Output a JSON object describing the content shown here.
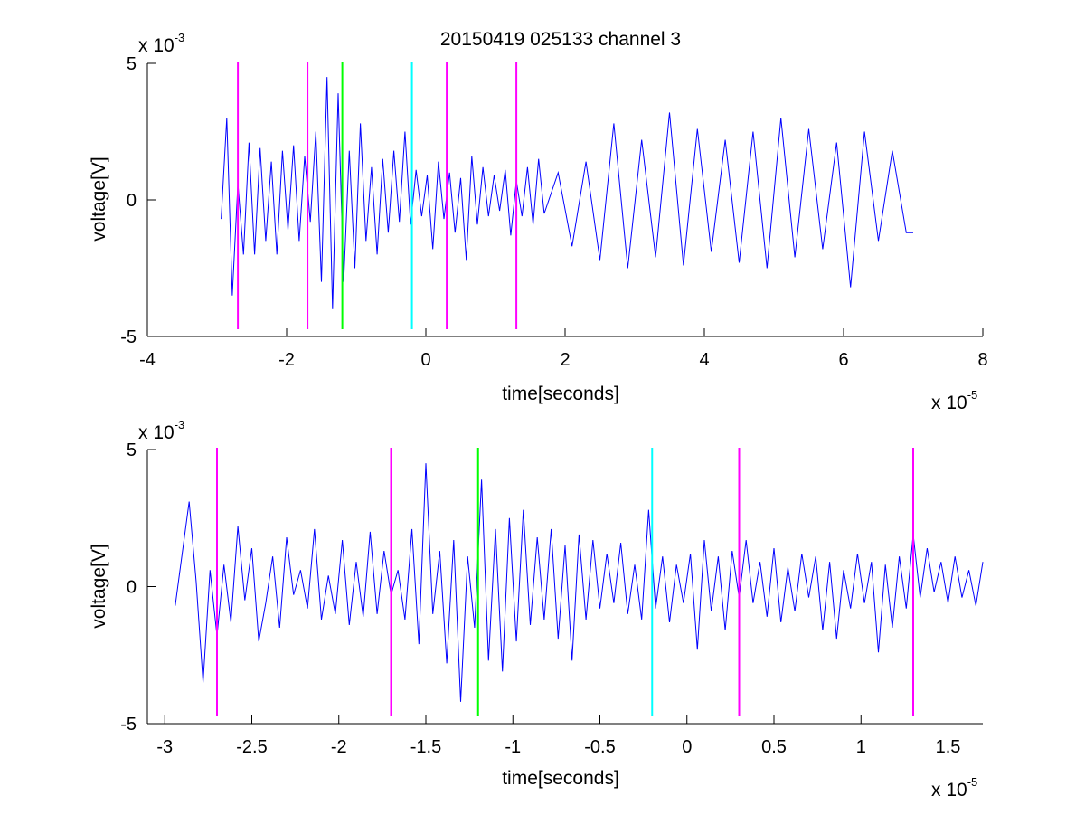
{
  "chart_data": [
    {
      "type": "line",
      "title": "20150419 025133 channel 3",
      "xlabel": "time[seconds]",
      "ylabel": "voltage[V]",
      "xlim": [
        -4e-05,
        8e-05
      ],
      "ylim": [
        -0.005,
        0.005
      ],
      "x_ticks": [
        -4e-05,
        -2e-05,
        0,
        2e-05,
        4e-05,
        6e-05,
        8e-05
      ],
      "x_tick_labels": [
        "-4",
        "-2",
        "0",
        "2",
        "4",
        "6",
        "8"
      ],
      "y_ticks": [
        -0.005,
        0,
        0.005
      ],
      "y_tick_labels": [
        "-5",
        "0",
        "5"
      ],
      "x_multiplier": {
        "base": "x 10",
        "exponent": "-5"
      },
      "y_multiplier": {
        "base": "x 10",
        "exponent": "-3"
      },
      "grid": false,
      "series": [
        {
          "color": "#0000ff",
          "x": [
            -2.94e-05,
            -2.86e-05,
            -2.78e-05,
            -2.7e-05,
            -2.62e-05,
            -2.54e-05,
            -2.46e-05,
            -2.38e-05,
            -2.3e-05,
            -2.22e-05,
            -2.14e-05,
            -2.06e-05,
            -1.98e-05,
            -1.9e-05,
            -1.82e-05,
            -1.74e-05,
            -1.66e-05,
            -1.58e-05,
            -1.5e-05,
            -1.42e-05,
            -1.34e-05,
            -1.26e-05,
            -1.18e-05,
            -1.1e-05,
            -1.02e-05,
            -9.4e-06,
            -8.6e-06,
            -7.8e-06,
            -7e-06,
            -6.2e-06,
            -5.4e-06,
            -4.6e-06,
            -3.8e-06,
            -3e-06,
            -2.2e-06,
            -1.4e-06,
            -6e-07,
            2e-07,
            1e-06,
            1.8e-06,
            2.6e-06,
            3.4e-06,
            4.2e-06,
            5e-06,
            5.8e-06,
            6.6e-06,
            7.4e-06,
            8.2e-06,
            9e-06,
            9.8e-06,
            1.06e-05,
            1.14e-05,
            1.22e-05,
            1.3e-05,
            1.38e-05,
            1.46e-05,
            1.54e-05,
            1.62e-05,
            1.7e-05,
            1.9e-05,
            2.1e-05,
            2.3e-05,
            2.5e-05,
            2.7e-05,
            2.9e-05,
            3.1e-05,
            3.3e-05,
            3.5e-05,
            3.7e-05,
            3.9e-05,
            4.1e-05,
            4.3e-05,
            4.5e-05,
            4.7e-05,
            4.9e-05,
            5.1e-05,
            5.3e-05,
            5.5e-05,
            5.7e-05,
            5.9e-05,
            6.1e-05,
            6.3e-05,
            6.5e-05,
            6.7e-05,
            6.9e-05,
            7e-05
          ],
          "y": [
            -0.0007,
            0.003,
            -0.0035,
            0.0006,
            -0.002,
            0.0021,
            -0.002,
            0.0019,
            -0.0015,
            0.0014,
            -0.002,
            0.0018,
            -0.0011,
            0.002,
            -0.0015,
            0.0016,
            -0.0008,
            0.0025,
            -0.003,
            0.0045,
            -0.004,
            0.0039,
            -0.003,
            0.0018,
            -0.0025,
            0.0028,
            -0.0015,
            0.0012,
            -0.002,
            0.0015,
            -0.0012,
            0.0018,
            -0.0008,
            0.0025,
            -0.0009,
            0.0011,
            -0.0006,
            0.0009,
            -0.0018,
            0.0014,
            -0.0007,
            0.001,
            -0.0012,
            0.0008,
            -0.0022,
            0.0016,
            -0.0009,
            0.0012,
            -0.0006,
            0.0009,
            -0.0004,
            0.0011,
            -0.0013,
            0.0007,
            -0.0006,
            0.0012,
            -0.0009,
            0.0015,
            -0.0005,
            0.001,
            -0.0017,
            0.0014,
            -0.0022,
            0.0028,
            -0.0025,
            0.0022,
            -0.0021,
            0.0032,
            -0.0024,
            0.0026,
            -0.0019,
            0.0022,
            -0.0023,
            0.0025,
            -0.0025,
            0.003,
            -0.0021,
            0.0026,
            -0.0018,
            0.0021,
            -0.0032,
            0.0025,
            -0.0015,
            0.0018,
            -0.0012,
            -0.0012
          ]
        }
      ],
      "markers": [
        {
          "x": -2.7e-05,
          "color": "#ff00ff"
        },
        {
          "x": -1.7e-05,
          "color": "#ff00ff"
        },
        {
          "x": -1.2e-05,
          "color": "#00ff00"
        },
        {
          "x": -2e-06,
          "color": "#00ffff"
        },
        {
          "x": 3e-06,
          "color": "#ff00ff"
        },
        {
          "x": 1.3e-05,
          "color": "#ff00ff"
        }
      ]
    },
    {
      "type": "line",
      "title": "",
      "xlabel": "time[seconds]",
      "ylabel": "voltage[V]",
      "xlim": [
        -3.1e-05,
        1.7e-05
      ],
      "ylim": [
        -0.005,
        0.005
      ],
      "x_ticks": [
        -3e-05,
        -2.5e-05,
        -2e-05,
        -1.5e-05,
        -1e-05,
        -5e-06,
        0,
        5e-06,
        1e-05,
        1.5e-05
      ],
      "x_tick_labels": [
        "-3",
        "-2.5",
        "-2",
        "-1.5",
        "-1",
        "-0.5",
        "0",
        "0.5",
        "1",
        "1.5"
      ],
      "y_ticks": [
        -0.005,
        0,
        0.005
      ],
      "y_tick_labels": [
        "-5",
        "0",
        "5"
      ],
      "x_multiplier": {
        "base": "x 10",
        "exponent": "-5"
      },
      "y_multiplier": {
        "base": "x 10",
        "exponent": "-3"
      },
      "grid": false,
      "series": [
        {
          "color": "#0000ff",
          "x": [
            -2.94e-05,
            -2.9e-05,
            -2.86e-05,
            -2.82e-05,
            -2.78e-05,
            -2.74e-05,
            -2.7e-05,
            -2.66e-05,
            -2.62e-05,
            -2.58e-05,
            -2.54e-05,
            -2.5e-05,
            -2.46e-05,
            -2.42e-05,
            -2.38e-05,
            -2.34e-05,
            -2.3e-05,
            -2.26e-05,
            -2.22e-05,
            -2.18e-05,
            -2.14e-05,
            -2.1e-05,
            -2.06e-05,
            -2.02e-05,
            -1.98e-05,
            -1.94e-05,
            -1.9e-05,
            -1.86e-05,
            -1.82e-05,
            -1.78e-05,
            -1.74e-05,
            -1.7e-05,
            -1.66e-05,
            -1.62e-05,
            -1.58e-05,
            -1.54e-05,
            -1.5e-05,
            -1.46e-05,
            -1.42e-05,
            -1.38e-05,
            -1.34e-05,
            -1.3e-05,
            -1.26e-05,
            -1.22e-05,
            -1.18e-05,
            -1.14e-05,
            -1.1e-05,
            -1.06e-05,
            -1.02e-05,
            -9.8e-06,
            -9.4e-06,
            -9e-06,
            -8.6e-06,
            -8.2e-06,
            -7.8e-06,
            -7.4e-06,
            -7e-06,
            -6.6e-06,
            -6.2e-06,
            -5.8e-06,
            -5.4e-06,
            -5e-06,
            -4.6e-06,
            -4.2e-06,
            -3.8e-06,
            -3.4e-06,
            -3e-06,
            -2.6e-06,
            -2.2e-06,
            -1.8e-06,
            -1.4e-06,
            -1e-06,
            -6e-07,
            -2e-07,
            2e-07,
            6e-07,
            1e-06,
            1.4e-06,
            1.8e-06,
            2.2e-06,
            2.6e-06,
            3e-06,
            3.4e-06,
            3.8e-06,
            4.2e-06,
            4.6e-06,
            5e-06,
            5.4e-06,
            5.8e-06,
            6.2e-06,
            6.6e-06,
            7e-06,
            7.4e-06,
            7.8e-06,
            8.2e-06,
            8.6e-06,
            9e-06,
            9.4e-06,
            9.8e-06,
            1.02e-05,
            1.06e-05,
            1.1e-05,
            1.14e-05,
            1.18e-05,
            1.22e-05,
            1.26e-05,
            1.3e-05,
            1.34e-05,
            1.38e-05,
            1.42e-05,
            1.46e-05,
            1.5e-05,
            1.54e-05,
            1.58e-05,
            1.62e-05,
            1.66e-05,
            1.7e-05
          ],
          "y": [
            -0.0007,
            0.0012,
            0.0031,
            0.0002,
            -0.0035,
            0.0006,
            -0.0018,
            0.0008,
            -0.0013,
            0.0022,
            -0.0005,
            0.0014,
            -0.002,
            -0.0006,
            0.0011,
            -0.0015,
            0.0018,
            -0.0003,
            0.0006,
            -0.0008,
            0.0021,
            -0.0012,
            0.0004,
            -0.001,
            0.0017,
            -0.0014,
            0.0009,
            -0.0011,
            0.002,
            -0.001,
            0.0013,
            -0.0003,
            0.0006,
            -0.0012,
            0.0021,
            -0.0021,
            0.0045,
            -0.001,
            0.0013,
            -0.0028,
            0.0017,
            -0.0042,
            0.0011,
            -0.0015,
            0.0039,
            -0.0027,
            0.0021,
            -0.0031,
            0.0025,
            -0.002,
            0.0028,
            -0.0014,
            0.0018,
            -0.0012,
            0.0021,
            -0.0019,
            0.0015,
            -0.0027,
            0.0019,
            -0.0012,
            0.0017,
            -0.0008,
            0.0012,
            -0.0006,
            0.0016,
            -0.001,
            0.0008,
            -0.0012,
            0.0028,
            -0.0008,
            0.0011,
            -0.0013,
            0.0008,
            -0.0006,
            0.0012,
            -0.0023,
            0.0017,
            -0.0009,
            0.0011,
            -0.0016,
            0.0013,
            -0.0004,
            0.0017,
            -0.0006,
            0.0009,
            -0.0011,
            0.0014,
            -0.0013,
            0.0007,
            -0.0009,
            0.0012,
            -0.0004,
            0.0011,
            -0.0016,
            0.0009,
            -0.0019,
            0.0006,
            -0.0008,
            0.0012,
            -0.0006,
            0.0009,
            -0.0024,
            0.0008,
            -0.0015,
            0.0011,
            -0.0008,
            0.0019,
            -0.0004,
            0.0014,
            -0.0002,
            0.0009,
            -0.0006,
            0.0011,
            -0.0004,
            0.0006,
            -0.0007,
            0.0009
          ]
        }
      ],
      "markers": [
        {
          "x": -2.7e-05,
          "color": "#ff00ff"
        },
        {
          "x": -1.7e-05,
          "color": "#ff00ff"
        },
        {
          "x": -1.2e-05,
          "color": "#00ff00"
        },
        {
          "x": -2e-06,
          "color": "#00ffff"
        },
        {
          "x": 3e-06,
          "color": "#ff00ff"
        },
        {
          "x": 1.3e-05,
          "color": "#ff00ff"
        }
      ]
    }
  ]
}
